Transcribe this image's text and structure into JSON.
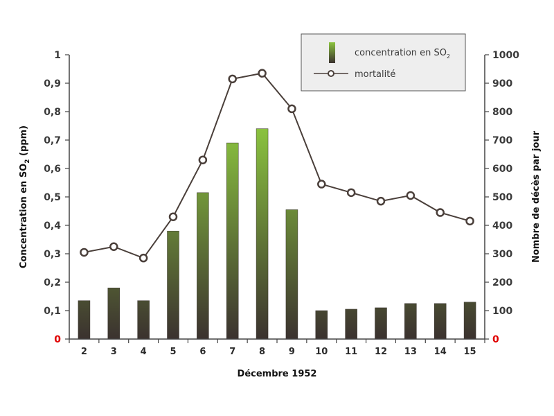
{
  "chart_data": {
    "type": "bar",
    "categories": [
      "2",
      "3",
      "4",
      "5",
      "6",
      "7",
      "8",
      "9",
      "10",
      "11",
      "12",
      "13",
      "14",
      "15"
    ],
    "series": [
      {
        "name": "concentration en SO2",
        "axis": "left",
        "type": "bar",
        "values": [
          0.135,
          0.18,
          0.135,
          0.38,
          0.515,
          0.69,
          0.74,
          0.455,
          0.1,
          0.105,
          0.11,
          0.125,
          0.125,
          0.13
        ]
      },
      {
        "name": "mortalité",
        "axis": "right",
        "type": "line",
        "values": [
          305,
          325,
          285,
          430,
          630,
          915,
          935,
          810,
          545,
          515,
          485,
          505,
          445,
          415
        ]
      }
    ],
    "xlabel": "Décembre 1952",
    "ylabel_left": "Concentration en SO2 (ppm)",
    "ylabel_right": "Nombre de décès par jour",
    "ylim_left": [
      0,
      1
    ],
    "ylim_right": [
      0,
      1000
    ],
    "yticks_left": [
      "0",
      "0,1",
      "0,2",
      "0,3",
      "0,4",
      "0,5",
      "0,6",
      "0,7",
      "0,8",
      "0,9",
      "1"
    ],
    "yticks_right": [
      "0",
      "100",
      "200",
      "300",
      "400",
      "500",
      "600",
      "700",
      "800",
      "900",
      "1000"
    ],
    "legend": {
      "placement": "top-right",
      "bar_label": "concentration en SO",
      "bar_label_sub": "2",
      "line_label": "mortalité"
    },
    "ylabel_left_parts": [
      "Concentration en SO",
      "2",
      " (ppm)"
    ],
    "colors": {
      "bar_top": "#8bc43f",
      "bar_bottom": "#3b322f",
      "line": "#4a3f3a",
      "marker_fill": "#ffffff",
      "zero_tick": "#e00000",
      "legend_bg": "#eeeeee"
    },
    "grid": false
  }
}
